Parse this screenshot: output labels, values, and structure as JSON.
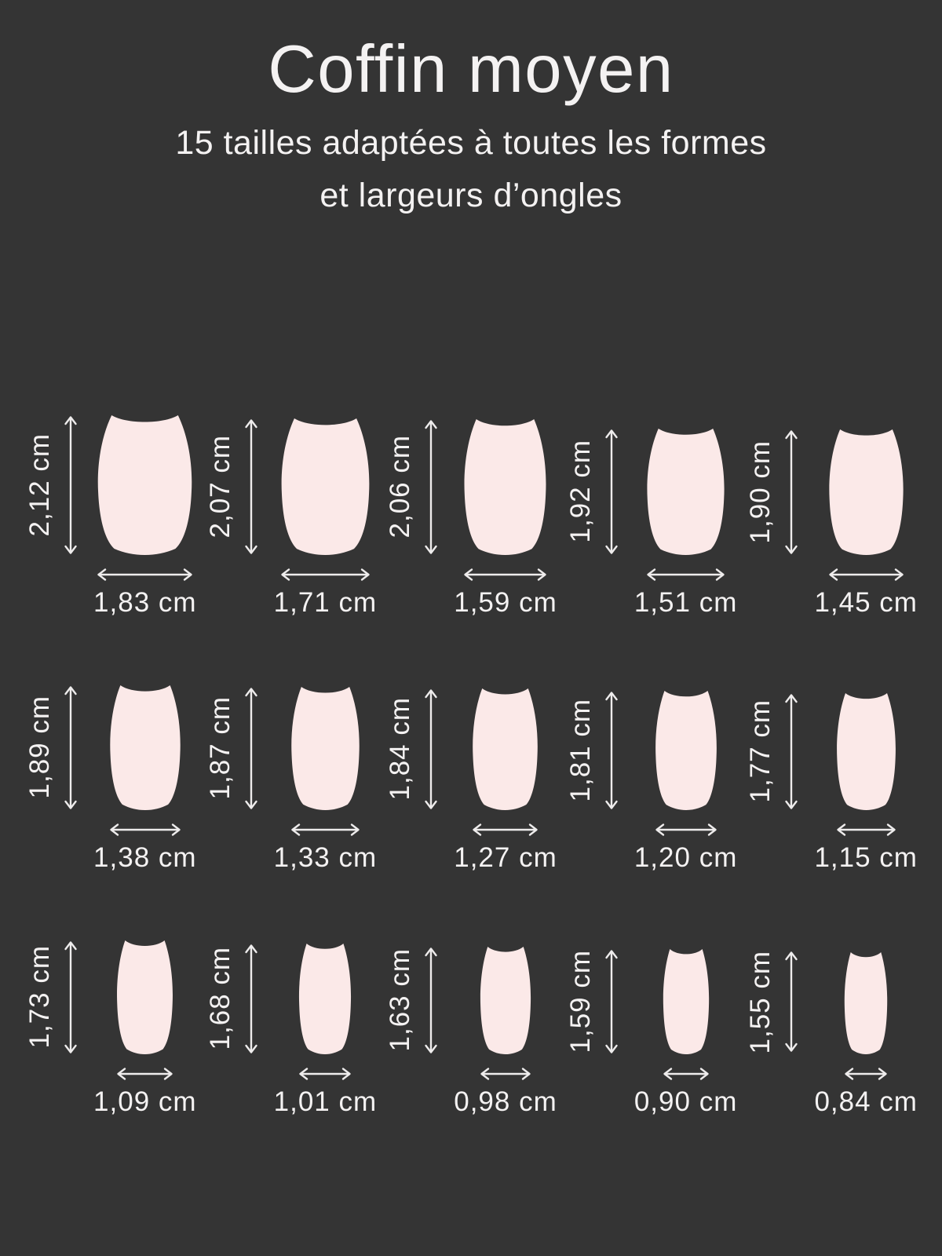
{
  "meta": {
    "title": "Coffin moyen",
    "subtitle_line1": "15 tailles adaptées à toutes les formes",
    "subtitle_line2": "et largeurs d’ongles"
  },
  "colors": {
    "background": "#343434",
    "nail": "#fbe9e8",
    "text": "#f4f2f2",
    "arrow": "#eeecec"
  },
  "unit": "cm",
  "sizes": [
    [
      {
        "height_label": "2,12 cm",
        "width_label": "1,83 cm",
        "height_cm": 2.12,
        "width_cm": 1.83
      },
      {
        "height_label": "2,07 cm",
        "width_label": "1,71 cm",
        "height_cm": 2.07,
        "width_cm": 1.71
      },
      {
        "height_label": "2,06 cm",
        "width_label": "1,59 cm",
        "height_cm": 2.06,
        "width_cm": 1.59
      },
      {
        "height_label": "1,92 cm",
        "width_label": "1,51 cm",
        "height_cm": 1.92,
        "width_cm": 1.51
      },
      {
        "height_label": "1,90 cm",
        "width_label": "1,45 cm",
        "height_cm": 1.9,
        "width_cm": 1.45
      }
    ],
    [
      {
        "height_label": "1,89 cm",
        "width_label": "1,38 cm",
        "height_cm": 1.89,
        "width_cm": 1.38
      },
      {
        "height_label": "1,87 cm",
        "width_label": "1,33 cm",
        "height_cm": 1.87,
        "width_cm": 1.33
      },
      {
        "height_label": "1,84 cm",
        "width_label": "1,27 cm",
        "height_cm": 1.84,
        "width_cm": 1.27
      },
      {
        "height_label": "1,81 cm",
        "width_label": "1,20 cm",
        "height_cm": 1.81,
        "width_cm": 1.2
      },
      {
        "height_label": "1,77 cm",
        "width_label": "1,15 cm",
        "height_cm": 1.77,
        "width_cm": 1.15
      }
    ],
    [
      {
        "height_label": "1,73 cm",
        "width_label": "1,09 cm",
        "height_cm": 1.73,
        "width_cm": 1.09
      },
      {
        "height_label": "1,68 cm",
        "width_label": "1,01 cm",
        "height_cm": 1.68,
        "width_cm": 1.01
      },
      {
        "height_label": "1,63 cm",
        "width_label": "0,98 cm",
        "height_cm": 1.63,
        "width_cm": 0.98
      },
      {
        "height_label": "1,59 cm",
        "width_label": "0,90 cm",
        "height_cm": 1.59,
        "width_cm": 0.9
      },
      {
        "height_label": "1,55 cm",
        "width_label": "0,84 cm",
        "height_cm": 1.55,
        "width_cm": 0.84
      }
    ]
  ]
}
